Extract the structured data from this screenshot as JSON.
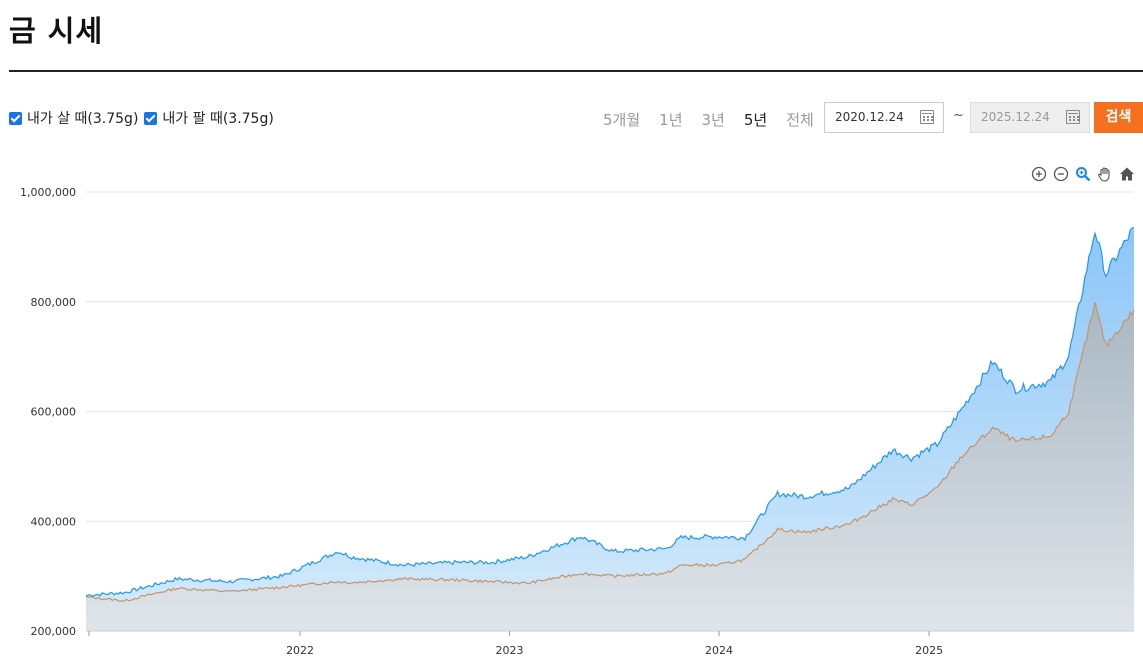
{
  "page": {
    "title": "금 시세"
  },
  "filters": {
    "buy_label": "내가 살 때(3.75g)",
    "sell_label": "내가 팔 때(3.75g)"
  },
  "periods": [
    {
      "label": "5개월",
      "active": false
    },
    {
      "label": "1년",
      "active": false
    },
    {
      "label": "3년",
      "active": false
    },
    {
      "label": "5년",
      "active": true
    },
    {
      "label": "전체",
      "active": false
    }
  ],
  "date_range": {
    "start": "2020.12.24",
    "separator": "~",
    "end": "2025.12.24"
  },
  "search_label": "검색",
  "toolbar_icons": [
    "zoom-in-icon",
    "zoom-out-icon",
    "magnify-icon",
    "pan-hand-icon",
    "home-icon"
  ],
  "colors": {
    "buy_line": "#2196f3",
    "buy_fill": "#a8d4fb",
    "sell_line": "#c4956a",
    "sell_fill": "#c9d1d9",
    "accent": "#f5711f"
  },
  "chart_data": {
    "type": "area",
    "title": "",
    "xlabel": "",
    "ylabel": "",
    "ylim": [
      200000,
      1000000
    ],
    "y_ticks": [
      200000,
      400000,
      600000,
      800000,
      1000000
    ],
    "y_tick_labels": [
      "200,000",
      "400,000",
      "600,000",
      "800,000",
      "1,000,000"
    ],
    "x_ticks": [
      "2022-01-01",
      "2023-01-01",
      "2024-01-01",
      "2025-01-01"
    ],
    "x_tick_labels": [
      "2022",
      "2023",
      "2024",
      "2025"
    ],
    "x_range": [
      "2020-12-24",
      "2025-12-24"
    ],
    "grid": true,
    "series": [
      {
        "name": "내가 살 때(3.75g)",
        "x": [
          "2020-12-24",
          "2021-03-01",
          "2021-06-01",
          "2021-09-01",
          "2021-12-01",
          "2022-03-08",
          "2022-04-01",
          "2022-07-01",
          "2022-10-01",
          "2022-12-01",
          "2023-02-01",
          "2023-05-05",
          "2023-07-01",
          "2023-10-01",
          "2023-10-27",
          "2023-12-28",
          "2024-02-15",
          "2024-04-12",
          "2024-06-01",
          "2024-08-15",
          "2024-10-30",
          "2024-12-01",
          "2025-01-15",
          "2025-02-24",
          "2025-04-22",
          "2025-06-01",
          "2025-08-01",
          "2025-09-01",
          "2025-10-17",
          "2025-11-05",
          "2025-12-24"
        ],
        "values": [
          265000,
          270000,
          295000,
          290000,
          300000,
          345000,
          335000,
          320000,
          325000,
          325000,
          335000,
          372000,
          345000,
          350000,
          370000,
          372000,
          370000,
          450000,
          445000,
          460000,
          530000,
          515000,
          540000,
          600000,
          690000,
          640000,
          655000,
          700000,
          930000,
          850000,
          935000
        ]
      },
      {
        "name": "내가 팔 때(3.75g)",
        "x": [
          "2020-12-24",
          "2021-03-01",
          "2021-06-01",
          "2021-09-01",
          "2021-12-01",
          "2022-03-08",
          "2022-04-01",
          "2022-07-01",
          "2022-10-01",
          "2022-12-01",
          "2023-02-01",
          "2023-05-05",
          "2023-07-01",
          "2023-10-01",
          "2023-10-27",
          "2023-12-28",
          "2024-02-15",
          "2024-04-12",
          "2024-06-01",
          "2024-08-15",
          "2024-10-30",
          "2024-12-01",
          "2025-01-15",
          "2025-02-24",
          "2025-04-22",
          "2025-06-01",
          "2025-08-01",
          "2025-09-01",
          "2025-10-17",
          "2025-11-05",
          "2025-12-24"
        ],
        "values": [
          262000,
          255000,
          278000,
          272000,
          280000,
          290000,
          288000,
          295000,
          293000,
          290000,
          287000,
          305000,
          300000,
          305000,
          320000,
          320000,
          330000,
          385000,
          380000,
          395000,
          440000,
          430000,
          460000,
          515000,
          570000,
          545000,
          555000,
          600000,
          795000,
          720000,
          785000
        ]
      }
    ]
  }
}
